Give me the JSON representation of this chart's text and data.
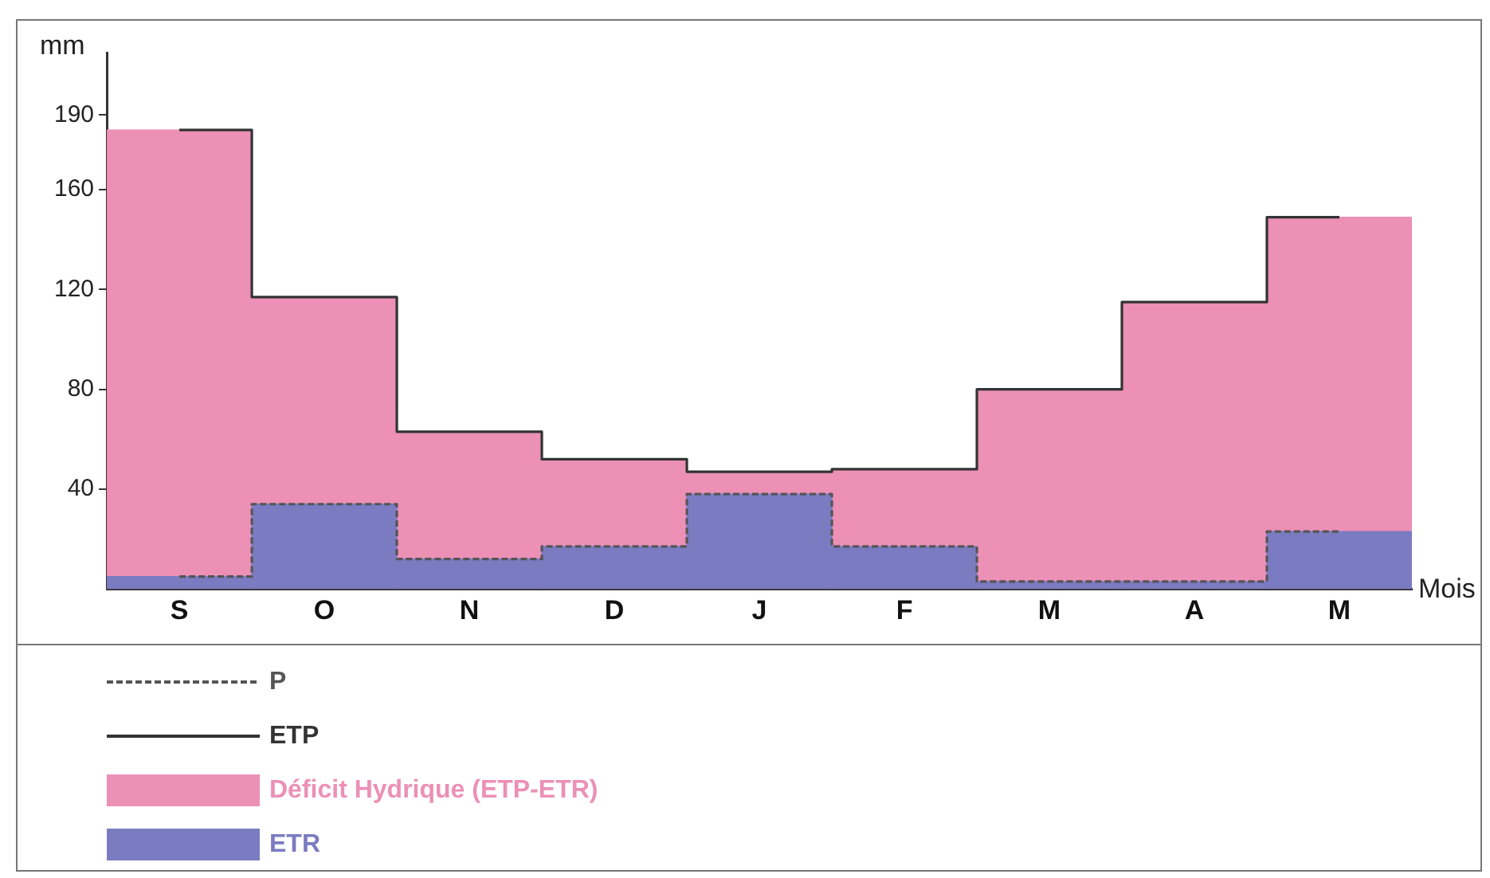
{
  "chart_data": {
    "type": "bar",
    "stacked": true,
    "xlabel": "Mois",
    "ylabel": "mm",
    "categories": [
      "S",
      "O",
      "N",
      "D",
      "J",
      "F",
      "M",
      "A",
      "M"
    ],
    "ylim": [
      0,
      215
    ],
    "yticks": [
      40,
      80,
      120,
      160,
      190
    ],
    "grid": false,
    "legend": "bottom",
    "series": [
      {
        "name": "ETR",
        "type": "bar",
        "color": "#7b7bc2",
        "values": [
          5,
          34,
          12,
          17,
          38,
          17,
          3,
          3,
          23
        ]
      },
      {
        "name": "Déficit Hydrique (ETP-ETR)",
        "type": "bar",
        "color": "#ec90b6",
        "values": [
          179,
          83,
          51,
          35,
          9,
          31,
          77,
          112,
          126
        ]
      },
      {
        "name": "ETP",
        "type": "step",
        "color": "#333333",
        "line_style": "solid",
        "values": [
          184,
          117,
          63,
          52,
          47,
          48,
          80,
          115,
          149
        ]
      },
      {
        "name": "P",
        "type": "step",
        "color": "#555555",
        "line_style": "dashed",
        "values": [
          5,
          34,
          12,
          17,
          38,
          17,
          3,
          3,
          23
        ]
      }
    ]
  }
}
